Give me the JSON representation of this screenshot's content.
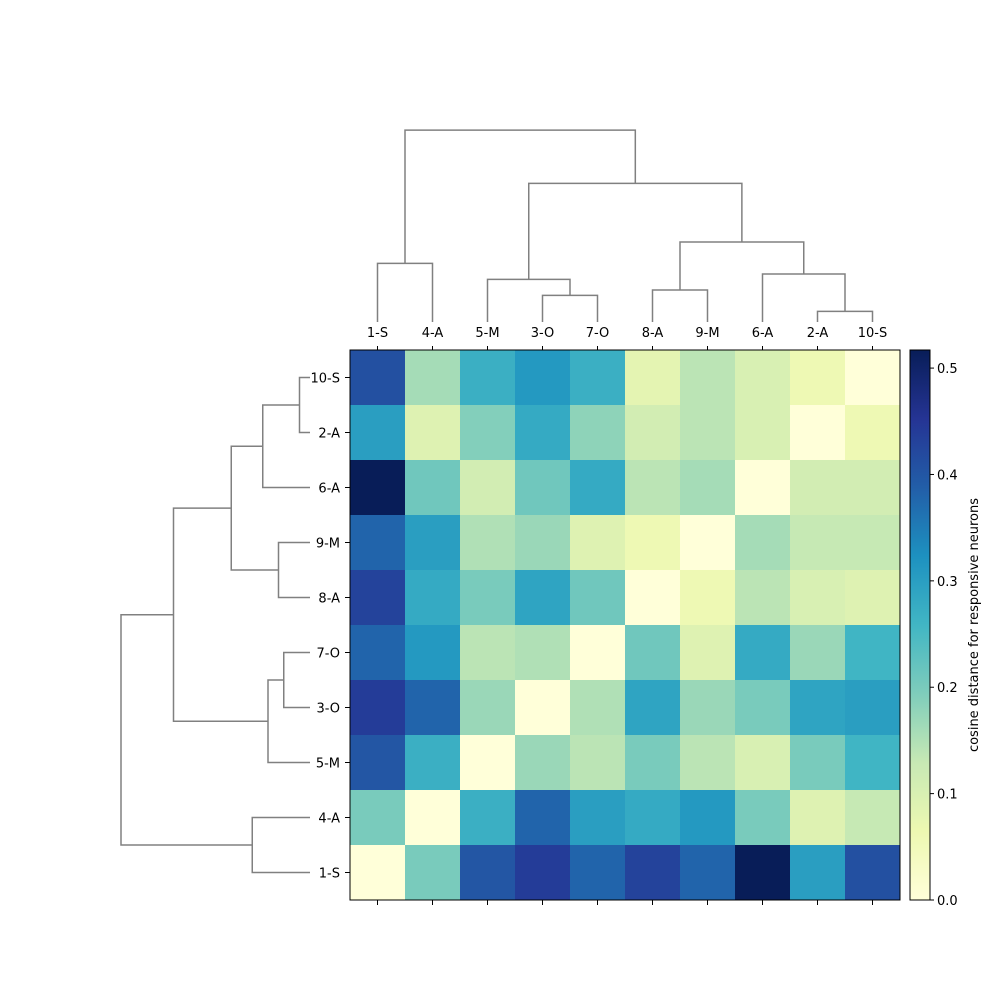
{
  "chart_data": {
    "type": "heatmap",
    "title": "",
    "x_labels": [
      "1-S",
      "4-A",
      "5-M",
      "3-O",
      "7-O",
      "8-A",
      "9-M",
      "6-A",
      "2-A",
      "10-S"
    ],
    "y_labels": [
      "10-S",
      "2-A",
      "6-A",
      "9-M",
      "8-A",
      "7-O",
      "3-O",
      "5-M",
      "4-A",
      "1-S"
    ],
    "values": [
      [
        0.41,
        0.16,
        0.27,
        0.31,
        0.27,
        0.08,
        0.14,
        0.1,
        0.06,
        0.0
      ],
      [
        0.3,
        0.09,
        0.19,
        0.28,
        0.18,
        0.11,
        0.14,
        0.1,
        0.0,
        0.06
      ],
      [
        0.52,
        0.21,
        0.11,
        0.21,
        0.28,
        0.14,
        0.16,
        0.0,
        0.11,
        0.11
      ],
      [
        0.38,
        0.3,
        0.15,
        0.17,
        0.09,
        0.06,
        0.0,
        0.16,
        0.13,
        0.13
      ],
      [
        0.43,
        0.28,
        0.2,
        0.29,
        0.21,
        0.0,
        0.06,
        0.14,
        0.1,
        0.09
      ],
      [
        0.38,
        0.31,
        0.14,
        0.15,
        0.0,
        0.21,
        0.09,
        0.28,
        0.17,
        0.26
      ],
      [
        0.44,
        0.38,
        0.17,
        0.0,
        0.15,
        0.29,
        0.17,
        0.2,
        0.29,
        0.3
      ],
      [
        0.4,
        0.27,
        0.0,
        0.17,
        0.14,
        0.2,
        0.14,
        0.1,
        0.2,
        0.26
      ],
      [
        0.2,
        0.0,
        0.27,
        0.38,
        0.3,
        0.28,
        0.31,
        0.2,
        0.09,
        0.13
      ],
      [
        0.0,
        0.2,
        0.4,
        0.44,
        0.38,
        0.43,
        0.38,
        0.52,
        0.3,
        0.41
      ]
    ],
    "colorbar": {
      "label": "cosine distance for responsive neurons",
      "min": 0.0,
      "max": 0.517,
      "ticks": [
        0.0,
        0.1,
        0.2,
        0.3,
        0.4,
        0.5
      ],
      "tick_labels": [
        "0.0",
        "0.1",
        "0.2",
        "0.3",
        "0.4",
        "0.5"
      ],
      "colormap_stops": [
        "#ffffd9",
        "#edf8b1",
        "#c7e9b4",
        "#7fcdbb",
        "#41b6c4",
        "#1d91c0",
        "#225ea8",
        "#253494",
        "#081d58"
      ]
    },
    "col_dendrogram": [
      {
        "left": 8,
        "right": 9,
        "height": 0.02
      },
      {
        "left": 7,
        "right": 8.5,
        "height": 0.09
      },
      {
        "left": 5,
        "right": 6,
        "height": 0.06
      },
      {
        "left": 5.5,
        "right": 7.75,
        "height": 0.15
      },
      {
        "left": 3,
        "right": 4,
        "height": 0.05
      },
      {
        "left": 2,
        "right": 3.5,
        "height": 0.08
      },
      {
        "left": 2.75,
        "right": 6.625,
        "height": 0.26
      },
      {
        "left": 0,
        "right": 1,
        "height": 0.11
      },
      {
        "left": 0.5,
        "right": 4.6875,
        "height": 0.36
      }
    ],
    "row_dendrogram": [
      {
        "top": 0,
        "bottom": 1,
        "height": 0.02
      },
      {
        "top": 0.5,
        "bottom": 2,
        "height": 0.09
      },
      {
        "top": 3,
        "bottom": 4,
        "height": 0.06
      },
      {
        "top": 1.25,
        "bottom": 3.5,
        "height": 0.15
      },
      {
        "top": 5,
        "bottom": 6,
        "height": 0.05
      },
      {
        "top": 5.5,
        "bottom": 7,
        "height": 0.08
      },
      {
        "top": 2.375,
        "bottom": 6.25,
        "height": 0.26
      },
      {
        "top": 8,
        "bottom": 9,
        "height": 0.11
      },
      {
        "top": 4.3125,
        "bottom": 8.5,
        "height": 0.36
      }
    ]
  }
}
